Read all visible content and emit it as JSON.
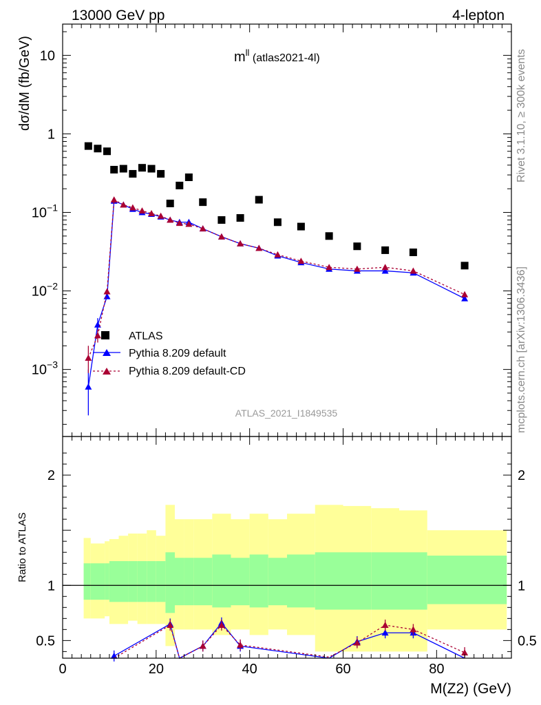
{
  "header": {
    "left": "13000 GeV pp",
    "right": "4-lepton"
  },
  "plot_title": {
    "main": "m",
    "sup": "ll",
    "tag": " (atlas2021-4l)"
  },
  "side_labels": {
    "rivet": "Rivet 3.1.10, ≥ 300k events",
    "mcplots": "mcplots.cern.ch [arXiv:1306.3436]"
  },
  "watermark": "ATLAS_2021_I1849535",
  "colors": {
    "data": "#000000",
    "pythia_default": "#0000ff",
    "pythia_cd": "#aa0033",
    "band_inner": "#99ff99",
    "band_outer": "#ffff99"
  },
  "chart_data": [
    {
      "type": "scatter",
      "name": "main",
      "ylabel": "dσ/dM (fb/GeV)",
      "yscale": "log",
      "ylim": [
        0.00014,
        25
      ],
      "xlim": [
        0,
        96
      ],
      "ytick_labels": [
        {
          "value": 10,
          "label": "10",
          "sup": ""
        },
        {
          "value": 1,
          "label": "1",
          "sup": ""
        },
        {
          "value": 0.1,
          "label": "10",
          "sup": "−1"
        },
        {
          "value": 0.01,
          "label": "10",
          "sup": "−2"
        },
        {
          "value": 0.001,
          "label": "10",
          "sup": "−3"
        }
      ],
      "legend": [
        {
          "label": "ATLAS",
          "marker": "square"
        },
        {
          "label": "Pythia 8.209 default",
          "marker": "triangle"
        },
        {
          "label": "Pythia 8.209 default-CD",
          "marker": "triangle"
        }
      ],
      "atlas": {
        "x": [
          5.5,
          7.5,
          9.5,
          11,
          13,
          15,
          17,
          19,
          21,
          23,
          25,
          27,
          30,
          34,
          38,
          42,
          46,
          51,
          57,
          63,
          69,
          75,
          86
        ],
        "y": [
          0.7,
          0.65,
          0.6,
          0.35,
          0.36,
          0.31,
          0.37,
          0.36,
          0.31,
          0.13,
          0.22,
          0.28,
          0.135,
          0.08,
          0.085,
          0.145,
          0.075,
          0.066,
          0.05,
          0.037,
          0.033,
          0.031,
          0.021
        ]
      },
      "pythia_default": {
        "x": [
          5.5,
          7.5,
          9.5,
          11,
          13,
          15,
          17,
          19,
          21,
          23,
          25,
          27,
          30,
          34,
          38,
          42,
          46,
          51,
          57,
          63,
          69,
          75,
          86
        ],
        "y": [
          0.0006,
          0.0037,
          0.0085,
          0.14,
          0.125,
          0.11,
          0.1,
          0.095,
          0.088,
          0.08,
          0.075,
          0.075,
          0.062,
          0.049,
          0.04,
          0.035,
          0.028,
          0.023,
          0.019,
          0.018,
          0.018,
          0.017,
          0.008
        ],
        "yerr_low": [
          0.00034,
          0.0007,
          0.0006,
          0,
          0,
          0,
          0,
          0,
          0,
          0,
          0,
          0,
          0,
          0,
          0,
          0,
          0,
          0,
          0,
          0,
          0,
          0,
          0
        ],
        "yerr_high": [
          0.0004,
          0.0008,
          0.0006,
          0,
          0,
          0,
          0,
          0,
          0,
          0,
          0,
          0,
          0,
          0,
          0,
          0,
          0,
          0,
          0,
          0,
          0,
          0,
          0
        ]
      },
      "pythia_cd": {
        "x": [
          5.5,
          7.5,
          9.5,
          11,
          13,
          15,
          17,
          19,
          21,
          23,
          25,
          27,
          30,
          34,
          38,
          42,
          46,
          51,
          57,
          63,
          69,
          75,
          86
        ],
        "y": [
          0.0014,
          0.0027,
          0.0098,
          0.145,
          0.125,
          0.115,
          0.105,
          0.097,
          0.09,
          0.08,
          0.073,
          0.071,
          0.062,
          0.049,
          0.04,
          0.035,
          0.029,
          0.024,
          0.02,
          0.019,
          0.02,
          0.018,
          0.009
        ],
        "yerr_low": [
          0.0005,
          0.0005,
          0.0008,
          0,
          0,
          0,
          0,
          0,
          0,
          0,
          0,
          0,
          0,
          0,
          0,
          0,
          0,
          0,
          0,
          0,
          0,
          0,
          0
        ],
        "yerr_high": [
          0.0006,
          0.0005,
          0.0008,
          0,
          0,
          0,
          0,
          0,
          0,
          0,
          0,
          0,
          0,
          0,
          0,
          0,
          0,
          0,
          0,
          0,
          0,
          0,
          0
        ]
      }
    },
    {
      "type": "scatter",
      "name": "ratio",
      "xlabel": "M(Z2) (GeV)",
      "ylabel": "Ratio to ATLAS",
      "ylim": [
        0.34,
        2.35
      ],
      "xlim": [
        0,
        96
      ],
      "ytick_labels": [
        {
          "value": 2,
          "label": "2"
        },
        {
          "value": 1,
          "label": "1"
        },
        {
          "value": 0.5,
          "label": "0.5"
        }
      ],
      "xtick_labels": [
        {
          "value": 0,
          "label": "0"
        },
        {
          "value": 20,
          "label": "20"
        },
        {
          "value": 40,
          "label": "40"
        },
        {
          "value": 60,
          "label": "60"
        },
        {
          "value": 80,
          "label": "80"
        }
      ],
      "reference_line": 1,
      "bands": [
        {
          "x0": 4.5,
          "x1": 6,
          "inner": [
            0.87,
            1.2
          ],
          "outer": [
            0.7,
            1.43
          ]
        },
        {
          "x0": 6,
          "x1": 9,
          "inner": [
            0.87,
            1.2
          ],
          "outer": [
            0.7,
            1.38
          ]
        },
        {
          "x0": 9,
          "x1": 10,
          "inner": [
            0.87,
            1.2
          ],
          "outer": [
            0.72,
            1.4
          ]
        },
        {
          "x0": 10,
          "x1": 12,
          "inner": [
            0.85,
            1.22
          ],
          "outer": [
            0.65,
            1.42
          ]
        },
        {
          "x0": 12,
          "x1": 14,
          "inner": [
            0.85,
            1.22
          ],
          "outer": [
            0.65,
            1.45
          ]
        },
        {
          "x0": 14,
          "x1": 16,
          "inner": [
            0.85,
            1.22
          ],
          "outer": [
            0.68,
            1.47
          ]
        },
        {
          "x0": 16,
          "x1": 18,
          "inner": [
            0.85,
            1.22
          ],
          "outer": [
            0.65,
            1.47
          ]
        },
        {
          "x0": 18,
          "x1": 20,
          "inner": [
            0.85,
            1.22
          ],
          "outer": [
            0.65,
            1.5
          ]
        },
        {
          "x0": 20,
          "x1": 22,
          "inner": [
            0.85,
            1.22
          ],
          "outer": [
            0.65,
            1.45
          ]
        },
        {
          "x0": 22,
          "x1": 24,
          "inner": [
            0.75,
            1.3
          ],
          "outer": [
            0.45,
            1.73
          ]
        },
        {
          "x0": 24,
          "x1": 26,
          "inner": [
            0.82,
            1.25
          ],
          "outer": [
            0.6,
            1.6
          ]
        },
        {
          "x0": 26,
          "x1": 28,
          "inner": [
            0.82,
            1.25
          ],
          "outer": [
            0.6,
            1.6
          ]
        },
        {
          "x0": 28,
          "x1": 32,
          "inner": [
            0.82,
            1.25
          ],
          "outer": [
            0.6,
            1.6
          ]
        },
        {
          "x0": 32,
          "x1": 36,
          "inner": [
            0.8,
            1.28
          ],
          "outer": [
            0.55,
            1.65
          ]
        },
        {
          "x0": 36,
          "x1": 40,
          "inner": [
            0.82,
            1.25
          ],
          "outer": [
            0.6,
            1.6
          ]
        },
        {
          "x0": 40,
          "x1": 44,
          "inner": [
            0.8,
            1.28
          ],
          "outer": [
            0.55,
            1.65
          ]
        },
        {
          "x0": 44,
          "x1": 48,
          "inner": [
            0.82,
            1.25
          ],
          "outer": [
            0.6,
            1.6
          ]
        },
        {
          "x0": 48,
          "x1": 54,
          "inner": [
            0.8,
            1.28
          ],
          "outer": [
            0.55,
            1.65
          ]
        },
        {
          "x0": 54,
          "x1": 60,
          "inner": [
            0.78,
            1.3
          ],
          "outer": [
            0.4,
            1.73
          ]
        },
        {
          "x0": 60,
          "x1": 66,
          "inner": [
            0.78,
            1.3
          ],
          "outer": [
            0.4,
            1.72
          ]
        },
        {
          "x0": 66,
          "x1": 72,
          "inner": [
            0.78,
            1.3
          ],
          "outer": [
            0.4,
            1.7
          ]
        },
        {
          "x0": 72,
          "x1": 78,
          "inner": [
            0.78,
            1.3
          ],
          "outer": [
            0.4,
            1.68
          ]
        },
        {
          "x0": 78,
          "x1": 95,
          "inner": [
            0.83,
            1.27
          ],
          "outer": [
            0.6,
            1.5
          ]
        }
      ],
      "pythia_default": {
        "x": [
          11,
          23,
          25,
          30,
          34,
          38,
          57,
          63,
          69,
          75,
          86
        ],
        "y": [
          0.36,
          0.65,
          0.3,
          0.45,
          0.66,
          0.45,
          0.3,
          0.49,
          0.57,
          0.57,
          0.3
        ]
      },
      "pythia_cd": {
        "x": [
          11,
          23,
          25,
          30,
          34,
          38,
          57,
          63,
          69,
          75,
          86
        ],
        "y": [
          0.34,
          0.64,
          0.3,
          0.45,
          0.64,
          0.46,
          0.35,
          0.48,
          0.64,
          0.6,
          0.39
        ]
      }
    }
  ]
}
